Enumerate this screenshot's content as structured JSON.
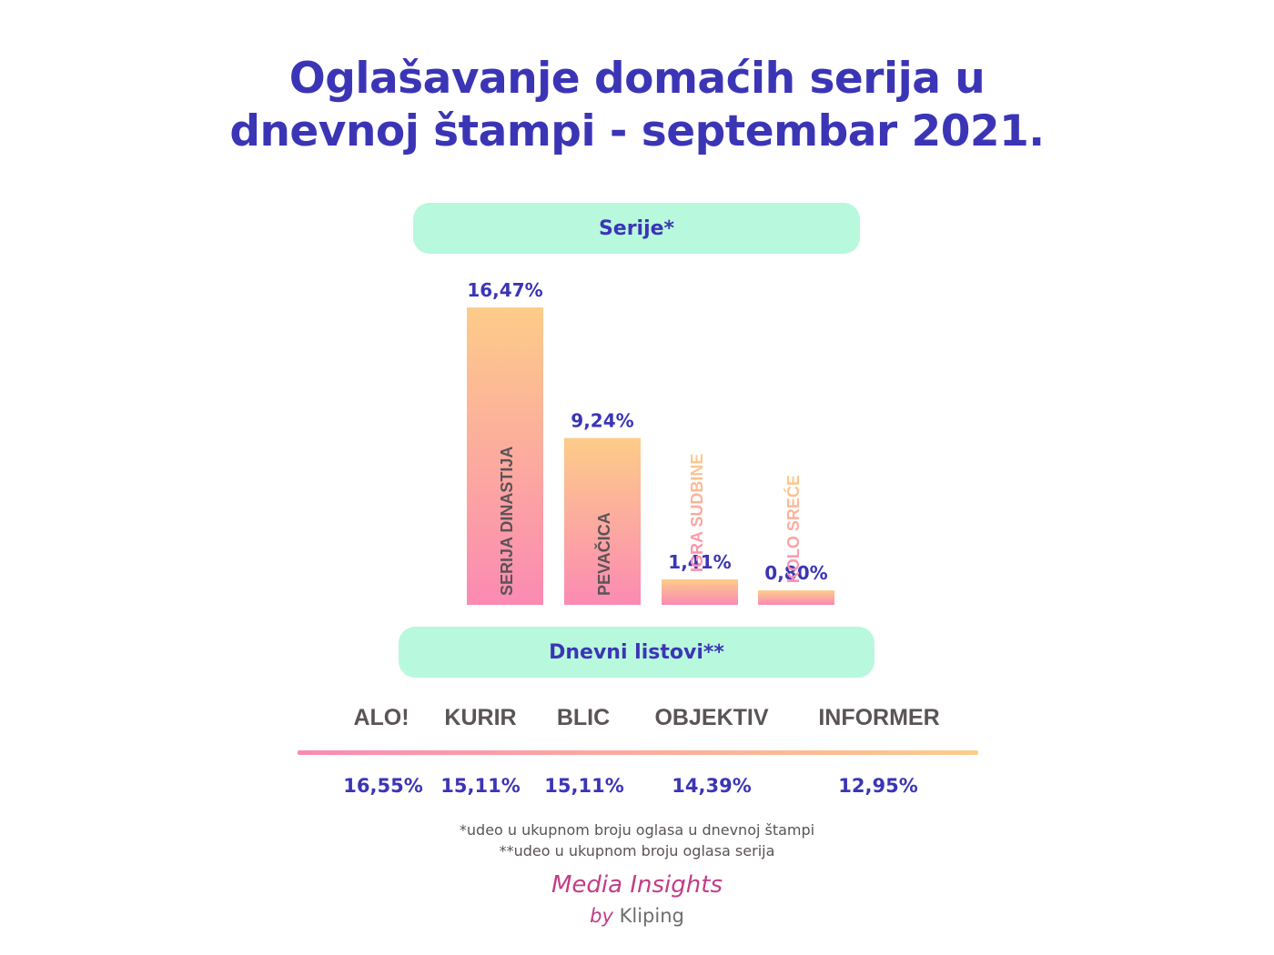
{
  "title": {
    "line1": "Oglašavanje domaćih serija u",
    "line2": "dnevnoj štampi - septembar 2021."
  },
  "series_header": "Serije*",
  "papers_header": "Dnevni listovi**",
  "colors": {
    "title": "#3b35b6",
    "pill_bg": "#b8f8dc",
    "bar_top": "#fdcc89",
    "bar_bottom": "#fb8ab3",
    "dark_label": "#5a5357",
    "brand": "#c23d87"
  },
  "chart_data": [
    {
      "type": "bar",
      "title": "Serije*",
      "categories": [
        "SERIJA DINASTIJA",
        "PEVAČICA",
        "IGRA SUDBINE",
        "KOLO SREĆE"
      ],
      "values": [
        16.47,
        9.24,
        1.41,
        0.8
      ],
      "value_labels": [
        "16,47%",
        "9,24%",
        "1,41%",
        "0,80%"
      ],
      "ylim": [
        0,
        16.47
      ],
      "grid": false,
      "legend": "none"
    },
    {
      "type": "table",
      "title": "Dnevni listovi**",
      "categories": [
        "ALO!",
        "KURIR",
        "BLIC",
        "OBJEKTIV",
        "INFORMER"
      ],
      "values": [
        16.55,
        15.11,
        15.11,
        14.39,
        12.95
      ],
      "value_labels": [
        "16,55%",
        "15,11%",
        "15,11%",
        "14,39%",
        "12,95%"
      ]
    }
  ],
  "footnotes": [
    "*udeo u ukupnom broju oglasa u dnevnoj štampi",
    "**udeo u ukupnom broju oglasa serija"
  ],
  "brand": {
    "main": "Media Insights",
    "by": "by",
    "company": "Kliping"
  }
}
